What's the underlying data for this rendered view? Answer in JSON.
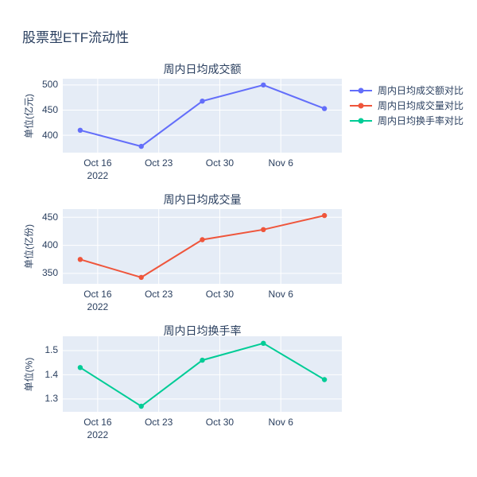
{
  "figure": {
    "title": "股票型ETF流动性"
  },
  "colors": {
    "background": "#ffffff",
    "plot_background": "#e5ecf6",
    "grid": "#ffffff",
    "text": "#2a3f5f",
    "series_blue": "#636efa",
    "series_red": "#ef553b",
    "series_green": "#00cc96"
  },
  "legend": {
    "position": "top-right",
    "items": [
      {
        "label": "周内日均成交额对比",
        "color": "#636efa"
      },
      {
        "label": "周内日均成交量对比",
        "color": "#ef553b"
      },
      {
        "label": "周内日均换手率对比",
        "color": "#00cc96"
      }
    ]
  },
  "chart_data": [
    {
      "type": "line",
      "title": "周内日均成交额",
      "ylabel": "单位(亿元)",
      "series": [
        {
          "name": "周内日均成交额对比",
          "color": "#636efa",
          "x": [
            "2022-10-14",
            "2022-10-21",
            "2022-10-28",
            "2022-11-04",
            "2022-11-11"
          ],
          "values": [
            410,
            378,
            468,
            500,
            453
          ]
        }
      ],
      "x_days": [
        0,
        7,
        14,
        21,
        28
      ],
      "xlim_days": [
        -2,
        30
      ],
      "x_ticks": [
        {
          "day": 2,
          "label_lines": [
            "Oct 16",
            "2022"
          ]
        },
        {
          "day": 9,
          "label_lines": [
            "Oct 23"
          ]
        },
        {
          "day": 16,
          "label_lines": [
            "Oct 30"
          ]
        },
        {
          "day": 23,
          "label_lines": [
            "Nov 6"
          ]
        }
      ],
      "y_tick_values": [
        400,
        450,
        500
      ],
      "ylim": [
        365.5,
        512.5
      ],
      "grid": true
    },
    {
      "type": "line",
      "title": "周内日均成交量",
      "ylabel": "单位(亿份)",
      "series": [
        {
          "name": "周内日均成交量对比",
          "color": "#ef553b",
          "x": [
            "2022-10-14",
            "2022-10-21",
            "2022-10-28",
            "2022-11-04",
            "2022-11-11"
          ],
          "values": [
            375,
            343,
            410,
            428,
            453
          ]
        }
      ],
      "x_days": [
        0,
        7,
        14,
        21,
        28
      ],
      "xlim_days": [
        -2,
        30
      ],
      "x_ticks": [
        {
          "day": 2,
          "label_lines": [
            "Oct 16",
            "2022"
          ]
        },
        {
          "day": 9,
          "label_lines": [
            "Oct 23"
          ]
        },
        {
          "day": 16,
          "label_lines": [
            "Oct 30"
          ]
        },
        {
          "day": 23,
          "label_lines": [
            "Nov 6"
          ]
        }
      ],
      "y_tick_values": [
        350,
        400,
        450
      ],
      "ylim": [
        331.5,
        464.5
      ],
      "grid": true
    },
    {
      "type": "line",
      "title": "周内日均换手率",
      "ylabel": "单位(%)",
      "series": [
        {
          "name": "周内日均换手率对比",
          "color": "#00cc96",
          "x": [
            "2022-10-14",
            "2022-10-21",
            "2022-10-28",
            "2022-11-04",
            "2022-11-11"
          ],
          "values": [
            1.43,
            1.27,
            1.46,
            1.53,
            1.38
          ]
        }
      ],
      "x_days": [
        0,
        7,
        14,
        21,
        28
      ],
      "xlim_days": [
        -2,
        30
      ],
      "x_ticks": [
        {
          "day": 2,
          "label_lines": [
            "Oct 16",
            "2022"
          ]
        },
        {
          "day": 9,
          "label_lines": [
            "Oct 23"
          ]
        },
        {
          "day": 16,
          "label_lines": [
            "Oct 30"
          ]
        },
        {
          "day": 23,
          "label_lines": [
            "Nov 6"
          ]
        }
      ],
      "y_tick_values": [
        1.3,
        1.4,
        1.5
      ],
      "ylim": [
        1.247,
        1.559
      ],
      "grid": true
    }
  ]
}
